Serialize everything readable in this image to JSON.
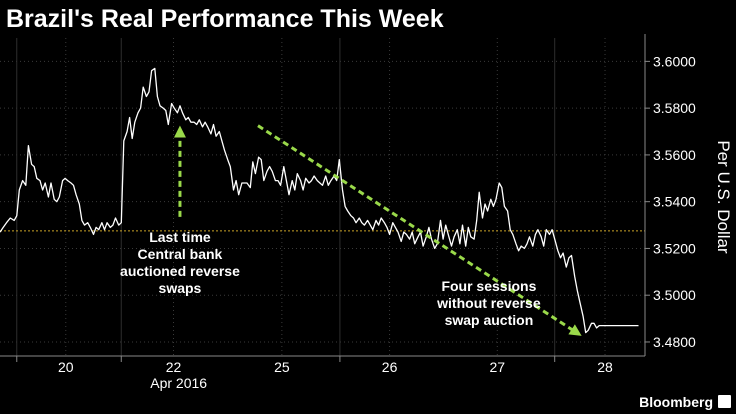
{
  "chart_data": {
    "type": "line",
    "title": "Brazil's Real Performance This Week",
    "ylabel": "Per U.S. Dollar",
    "xlabel": "Apr 2016",
    "ylim": [
      3.474,
      3.61
    ],
    "xlim": [
      0,
      100
    ],
    "grid": true,
    "y_ticks": [
      3.48,
      3.5,
      3.52,
      3.54,
      3.56,
      3.58,
      3.6
    ],
    "y_tick_labels": [
      "3.4800",
      "3.5000",
      "3.5200",
      "3.5400",
      "3.5600",
      "3.5800",
      "3.6000"
    ],
    "x_ticks": [
      {
        "label": "20",
        "x": 10.2
      },
      {
        "label": "22",
        "x": 26.9
      },
      {
        "label": "25",
        "x": 43.7
      },
      {
        "label": "26",
        "x": 60.4
      },
      {
        "label": "27",
        "x": 77.1
      },
      {
        "label": "28",
        "x": 93.8
      }
    ],
    "session_dividers": [
      2.6,
      18.8,
      52.7,
      86.0
    ],
    "reference_line": {
      "y": 3.5275,
      "color": "#c9a227"
    },
    "series": [
      {
        "color": "#ffffff",
        "points": [
          [
            0,
            3.527
          ],
          [
            0.5,
            3.529
          ],
          [
            1,
            3.531
          ],
          [
            1.6,
            3.533
          ],
          [
            2.2,
            3.532
          ],
          [
            2.6,
            3.534
          ],
          [
            3,
            3.545
          ],
          [
            3.5,
            3.549
          ],
          [
            4,
            3.547
          ],
          [
            4.4,
            3.564
          ],
          [
            4.9,
            3.556
          ],
          [
            5.3,
            3.555
          ],
          [
            5.7,
            3.55
          ],
          [
            6.2,
            3.549
          ],
          [
            6.6,
            3.545
          ],
          [
            7,
            3.548
          ],
          [
            7.5,
            3.542
          ],
          [
            7.9,
            3.548
          ],
          [
            8.4,
            3.541
          ],
          [
            8.8,
            3.54
          ],
          [
            9.2,
            3.542
          ],
          [
            9.7,
            3.549
          ],
          [
            10.1,
            3.55
          ],
          [
            10.5,
            3.549
          ],
          [
            11,
            3.548
          ],
          [
            11.4,
            3.547
          ],
          [
            11.8,
            3.543
          ],
          [
            12.3,
            3.539
          ],
          [
            12.7,
            3.532
          ],
          [
            13.1,
            3.53
          ],
          [
            13.6,
            3.531
          ],
          [
            14,
            3.529
          ],
          [
            14.5,
            3.526
          ],
          [
            14.9,
            3.529
          ],
          [
            15.3,
            3.528
          ],
          [
            15.8,
            3.531
          ],
          [
            16.2,
            3.528
          ],
          [
            16.6,
            3.531
          ],
          [
            17.1,
            3.529
          ],
          [
            17.5,
            3.53
          ],
          [
            17.9,
            3.533
          ],
          [
            18.4,
            3.53
          ],
          [
            18.8,
            3.531
          ],
          [
            19.2,
            3.566
          ],
          [
            19.7,
            3.57
          ],
          [
            20.1,
            3.576
          ],
          [
            20.5,
            3.567
          ],
          [
            20.9,
            3.574
          ],
          [
            21.4,
            3.578
          ],
          [
            21.8,
            3.58
          ],
          [
            22.2,
            3.589
          ],
          [
            22.7,
            3.585
          ],
          [
            23.1,
            3.587
          ],
          [
            23.5,
            3.596
          ],
          [
            24,
            3.597
          ],
          [
            24.4,
            3.585
          ],
          [
            24.8,
            3.581
          ],
          [
            25.3,
            3.58
          ],
          [
            25.7,
            3.579
          ],
          [
            26.1,
            3.573
          ],
          [
            26.6,
            3.582
          ],
          [
            27,
            3.58
          ],
          [
            27.5,
            3.578
          ],
          [
            27.9,
            3.581
          ],
          [
            28.3,
            3.578
          ],
          [
            28.8,
            3.575
          ],
          [
            29.2,
            3.576
          ],
          [
            29.6,
            3.574
          ],
          [
            30.1,
            3.574
          ],
          [
            30.5,
            3.573
          ],
          [
            30.9,
            3.575
          ],
          [
            31.4,
            3.572
          ],
          [
            31.8,
            3.574
          ],
          [
            32.2,
            3.572
          ],
          [
            32.7,
            3.569
          ],
          [
            33.1,
            3.573
          ],
          [
            33.5,
            3.568
          ],
          [
            34,
            3.57
          ],
          [
            34.4,
            3.566
          ],
          [
            34.8,
            3.562
          ],
          [
            35.3,
            3.558
          ],
          [
            35.7,
            3.555
          ],
          [
            36.2,
            3.545
          ],
          [
            36.6,
            3.549
          ],
          [
            37,
            3.543
          ],
          [
            37.5,
            3.548
          ],
          [
            37.9,
            3.548
          ],
          [
            38.3,
            3.548
          ],
          [
            38.8,
            3.546
          ],
          [
            39.2,
            3.557
          ],
          [
            39.6,
            3.552
          ],
          [
            40.1,
            3.559
          ],
          [
            40.5,
            3.558
          ],
          [
            40.9,
            3.549
          ],
          [
            41.4,
            3.553
          ],
          [
            41.8,
            3.555
          ],
          [
            42.2,
            3.553
          ],
          [
            42.7,
            3.549
          ],
          [
            43.1,
            3.549
          ],
          [
            43.5,
            3.547
          ],
          [
            44,
            3.555
          ],
          [
            44.4,
            3.549
          ],
          [
            44.8,
            3.543
          ],
          [
            45.3,
            3.549
          ],
          [
            45.7,
            3.545
          ],
          [
            46.1,
            3.552
          ],
          [
            46.6,
            3.549
          ],
          [
            47,
            3.545
          ],
          [
            47.4,
            3.55
          ],
          [
            47.9,
            3.548
          ],
          [
            48.3,
            3.549
          ],
          [
            48.7,
            3.551
          ],
          [
            49.2,
            3.549
          ],
          [
            49.6,
            3.548
          ],
          [
            50,
            3.547
          ],
          [
            50.5,
            3.551
          ],
          [
            50.9,
            3.547
          ],
          [
            51.3,
            3.549
          ],
          [
            51.8,
            3.551
          ],
          [
            52.2,
            3.549
          ],
          [
            52.6,
            3.558
          ],
          [
            53.1,
            3.545
          ],
          [
            53.5,
            3.538
          ],
          [
            53.9,
            3.536
          ],
          [
            54.4,
            3.534
          ],
          [
            54.8,
            3.533
          ],
          [
            55.2,
            3.531
          ],
          [
            55.7,
            3.533
          ],
          [
            56.1,
            3.531
          ],
          [
            56.5,
            3.53
          ],
          [
            57,
            3.532
          ],
          [
            57.4,
            3.53
          ],
          [
            57.8,
            3.528
          ],
          [
            58.3,
            3.532
          ],
          [
            58.7,
            3.53
          ],
          [
            59.1,
            3.533
          ],
          [
            59.6,
            3.531
          ],
          [
            60,
            3.529
          ],
          [
            60.4,
            3.526
          ],
          [
            60.9,
            3.531
          ],
          [
            61.3,
            3.529
          ],
          [
            61.7,
            3.527
          ],
          [
            62.2,
            3.523
          ],
          [
            62.6,
            3.527
          ],
          [
            63,
            3.526
          ],
          [
            63.5,
            3.524
          ],
          [
            63.9,
            3.527
          ],
          [
            64.3,
            3.522
          ],
          [
            64.8,
            3.525
          ],
          [
            65.2,
            3.527
          ],
          [
            65.6,
            3.521
          ],
          [
            66.1,
            3.525
          ],
          [
            66.5,
            3.529
          ],
          [
            66.9,
            3.524
          ],
          [
            67.4,
            3.52
          ],
          [
            67.8,
            3.522
          ],
          [
            68.3,
            3.532
          ],
          [
            68.7,
            3.524
          ],
          [
            69.1,
            3.53
          ],
          [
            69.6,
            3.525
          ],
          [
            70,
            3.521
          ],
          [
            70.4,
            3.525
          ],
          [
            70.9,
            3.528
          ],
          [
            71.3,
            3.522
          ],
          [
            71.7,
            3.53
          ],
          [
            72.2,
            3.521
          ],
          [
            72.6,
            3.529
          ],
          [
            73,
            3.525
          ],
          [
            73.5,
            3.524
          ],
          [
            73.9,
            3.532
          ],
          [
            74.3,
            3.544
          ],
          [
            74.8,
            3.533
          ],
          [
            75.2,
            3.539
          ],
          [
            75.6,
            3.536
          ],
          [
            76.1,
            3.541
          ],
          [
            76.5,
            3.538
          ],
          [
            76.9,
            3.541
          ],
          [
            77.4,
            3.548
          ],
          [
            77.8,
            3.546
          ],
          [
            78.2,
            3.538
          ],
          [
            78.7,
            3.536
          ],
          [
            79.1,
            3.528
          ],
          [
            79.5,
            3.526
          ],
          [
            80,
            3.522
          ],
          [
            80.4,
            3.519
          ],
          [
            80.8,
            3.521
          ],
          [
            81.3,
            3.52
          ],
          [
            81.7,
            3.522
          ],
          [
            82.1,
            3.525
          ],
          [
            82.6,
            3.521
          ],
          [
            83,
            3.526
          ],
          [
            83.4,
            3.528
          ],
          [
            83.9,
            3.525
          ],
          [
            84.3,
            3.521
          ],
          [
            84.7,
            3.528
          ],
          [
            85.2,
            3.526
          ],
          [
            85.6,
            3.528
          ],
          [
            86,
            3.524
          ],
          [
            86.5,
            3.519
          ],
          [
            86.9,
            3.516
          ],
          [
            87.3,
            3.518
          ],
          [
            87.8,
            3.512
          ],
          [
            88.2,
            3.516
          ],
          [
            88.6,
            3.517
          ],
          [
            89.1,
            3.508
          ],
          [
            89.5,
            3.502
          ],
          [
            89.9,
            3.497
          ],
          [
            90.4,
            3.491
          ],
          [
            90.8,
            3.484
          ],
          [
            91.2,
            3.485
          ],
          [
            91.7,
            3.488
          ],
          [
            92.1,
            3.488
          ],
          [
            92.5,
            3.486
          ],
          [
            92.9,
            3.487
          ],
          [
            93.5,
            3.487
          ],
          [
            94.2,
            3.487
          ],
          [
            95,
            3.487
          ],
          [
            96.5,
            3.487
          ],
          [
            98,
            3.487
          ],
          [
            99,
            3.487
          ]
        ]
      }
    ],
    "annotations": [
      {
        "lines": [
          "Last time",
          "Central bank",
          "auctioned reverse",
          "swaps"
        ],
        "arrow": {
          "from": [
            27.9,
            3.5335
          ],
          "to": [
            27.9,
            3.57
          ]
        },
        "text_x": 27.9,
        "color": "#9ad94a"
      },
      {
        "lines": [
          "Four sessions",
          "without reverse",
          "swap auction"
        ],
        "arrow": {
          "from": [
            40.0,
            3.5725
          ],
          "to": [
            89.4,
            3.484
          ]
        },
        "text_x": 75.8,
        "color": "#9ad94a"
      }
    ]
  },
  "brand": {
    "name": "Bloomberg"
  },
  "colors": {
    "background": "#000000",
    "text": "#ffffff",
    "grid": "#3a3a3a",
    "axis": "#888888",
    "series": "#ffffff",
    "reference": "#c9a227",
    "arrow": "#9ad94a"
  }
}
